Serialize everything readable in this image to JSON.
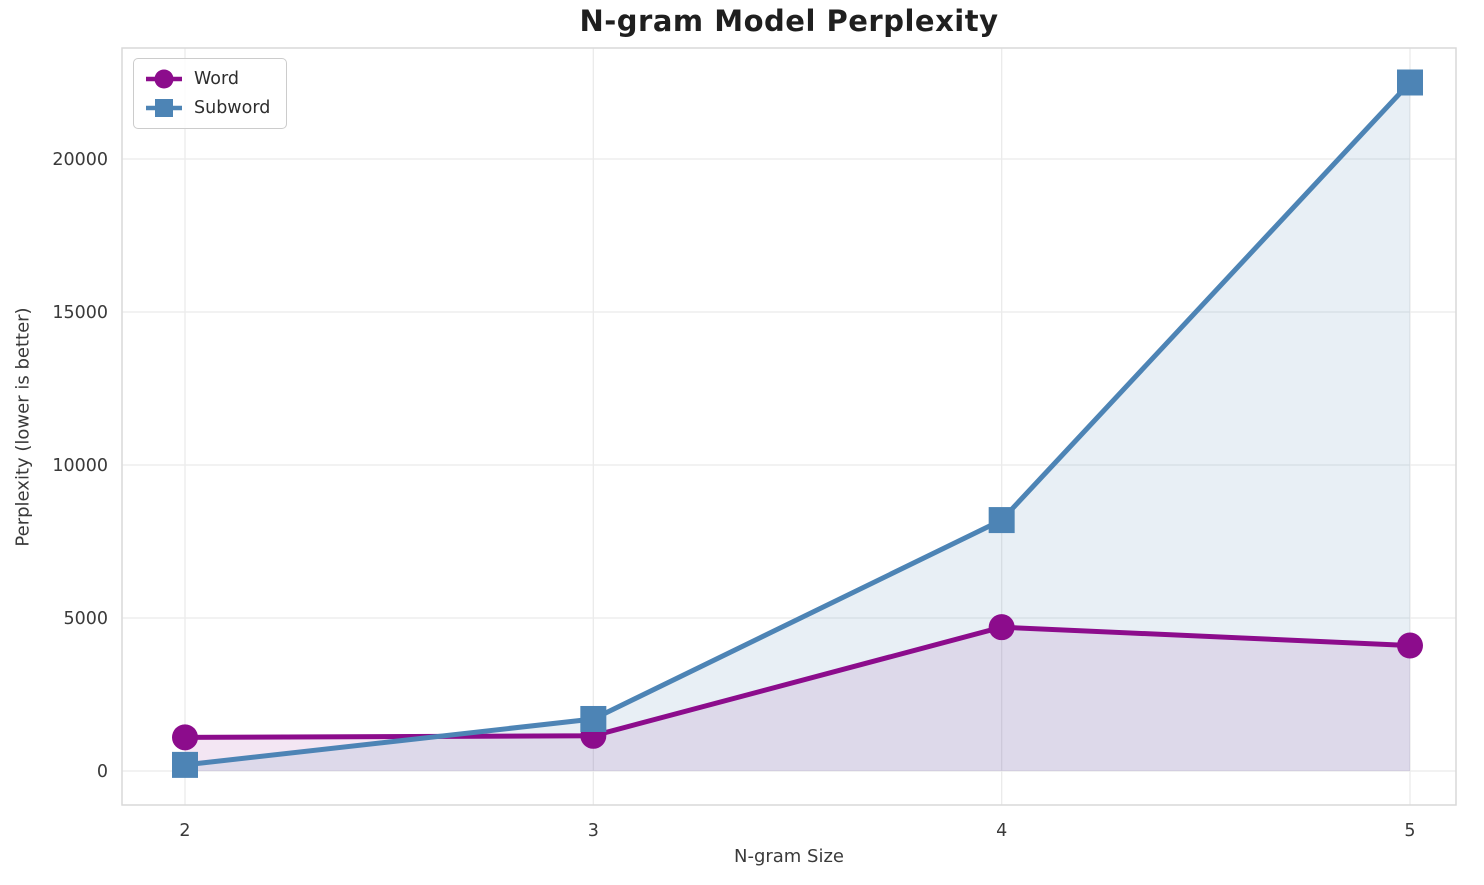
{
  "chart_data": {
    "type": "line",
    "title": "N-gram Model Perplexity",
    "xlabel": "N-gram Size",
    "ylabel": "Perplexity (lower is better)",
    "categories": [
      2,
      3,
      4,
      5
    ],
    "series": [
      {
        "name": "Word",
        "marker": "circle",
        "color": "#8c0c8c",
        "fill": "rgba(140,12,140,0.10)",
        "values": [
          1100,
          1150,
          4700,
          4100
        ]
      },
      {
        "name": "Subword",
        "marker": "square",
        "color": "#4d84b5",
        "fill": "rgba(77,132,181,0.13)",
        "values": [
          200,
          1700,
          8200,
          22500
        ]
      }
    ],
    "y_ticks": [
      0,
      5000,
      10000,
      15000,
      20000
    ],
    "ylim": [
      0,
      23600
    ],
    "grid": true,
    "legend_position": "upper left"
  }
}
